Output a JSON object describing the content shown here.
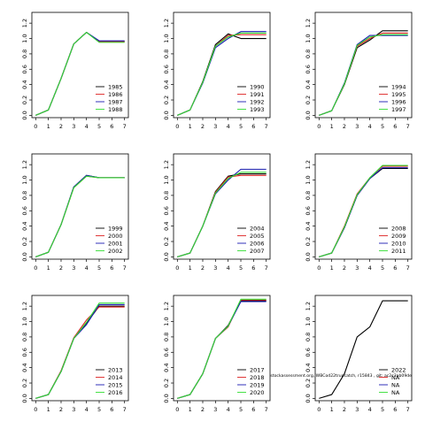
{
  "chart_data": {
    "type": "line",
    "layout": "3x3 small multiples",
    "x": [
      0,
      1,
      2,
      3,
      4,
      5,
      6,
      7
    ],
    "xticks": [
      "0",
      "1",
      "2",
      "3",
      "4",
      "5",
      "6",
      "7"
    ],
    "yticks": [
      "0.0",
      "0.2",
      "0.4",
      "0.6",
      "0.8",
      "1.0",
      "1.2"
    ],
    "ylim": [
      -0.03,
      1.34
    ],
    "xlim": [
      -0.3,
      7.3
    ],
    "grid": false,
    "legend_position": "bottom-right",
    "colors": [
      "#000000",
      "#dd2222",
      "#1a1ab0",
      "#33dd33"
    ],
    "annotation": "stockassessment.org, WBCod22truncatch, r15843 , git: ac2c3ab09de",
    "panels": [
      {
        "series": [
          {
            "name": "1985",
            "values": [
              0,
              0.07,
              0.48,
              0.93,
              1.08,
              0.96,
              0.96,
              0.96
            ]
          },
          {
            "name": "1986",
            "values": [
              0,
              0.07,
              0.48,
              0.93,
              1.08,
              0.96,
              0.96,
              0.96
            ]
          },
          {
            "name": "1987",
            "values": [
              0,
              0.07,
              0.48,
              0.93,
              1.08,
              0.97,
              0.97,
              0.97
            ]
          },
          {
            "name": "1988",
            "values": [
              0,
              0.07,
              0.48,
              0.93,
              1.08,
              0.95,
              0.95,
              0.95
            ]
          }
        ]
      },
      {
        "series": [
          {
            "name": "1990",
            "values": [
              0,
              0.07,
              0.44,
              0.92,
              1.06,
              1.0,
              1.0,
              1.0
            ]
          },
          {
            "name": "1991",
            "values": [
              0,
              0.07,
              0.43,
              0.9,
              1.04,
              1.05,
              1.05,
              1.05
            ]
          },
          {
            "name": "1992",
            "values": [
              0,
              0.07,
              0.42,
              0.88,
              1.0,
              1.09,
              1.09,
              1.09
            ]
          },
          {
            "name": "1993",
            "values": [
              0,
              0.07,
              0.43,
              0.9,
              1.02,
              1.07,
              1.07,
              1.07
            ]
          }
        ]
      },
      {
        "series": [
          {
            "name": "1994",
            "values": [
              0,
              0.06,
              0.4,
              0.88,
              0.98,
              1.1,
              1.1,
              1.1
            ]
          },
          {
            "name": "1995",
            "values": [
              0,
              0.06,
              0.41,
              0.9,
              1.0,
              1.07,
              1.07,
              1.07
            ]
          },
          {
            "name": "1996",
            "values": [
              0,
              0.06,
              0.42,
              0.92,
              1.04,
              1.04,
              1.04,
              1.04
            ]
          },
          {
            "name": "1997",
            "values": [
              0,
              0.06,
              0.41,
              0.91,
              1.02,
              1.05,
              1.05,
              1.05
            ]
          }
        ]
      },
      {
        "series": [
          {
            "name": "1999",
            "values": [
              0,
              0.06,
              0.42,
              0.91,
              1.06,
              1.03,
              1.03,
              1.03
            ]
          },
          {
            "name": "2000",
            "values": [
              0,
              0.06,
              0.42,
              0.9,
              1.05,
              1.03,
              1.03,
              1.03
            ]
          },
          {
            "name": "2001",
            "values": [
              0,
              0.06,
              0.42,
              0.91,
              1.06,
              1.03,
              1.03,
              1.03
            ]
          },
          {
            "name": "2002",
            "values": [
              0,
              0.06,
              0.42,
              0.9,
              1.05,
              1.03,
              1.03,
              1.03
            ]
          }
        ]
      },
      {
        "series": [
          {
            "name": "2004",
            "values": [
              0,
              0.05,
              0.4,
              0.85,
              1.05,
              1.08,
              1.08,
              1.08
            ]
          },
          {
            "name": "2005",
            "values": [
              0,
              0.05,
              0.4,
              0.84,
              1.04,
              1.06,
              1.06,
              1.06
            ]
          },
          {
            "name": "2006",
            "values": [
              0,
              0.05,
              0.4,
              0.82,
              1.0,
              1.14,
              1.14,
              1.14
            ]
          },
          {
            "name": "2007",
            "values": [
              0,
              0.05,
              0.4,
              0.83,
              1.02,
              1.1,
              1.1,
              1.1
            ]
          }
        ]
      },
      {
        "series": [
          {
            "name": "2008",
            "values": [
              0,
              0.05,
              0.38,
              0.8,
              1.02,
              1.15,
              1.15,
              1.15
            ]
          },
          {
            "name": "2009",
            "values": [
              0,
              0.05,
              0.4,
              0.82,
              1.03,
              1.18,
              1.18,
              1.18
            ]
          },
          {
            "name": "2010",
            "values": [
              0,
              0.05,
              0.38,
              0.8,
              1.02,
              1.16,
              1.16,
              1.16
            ]
          },
          {
            "name": "2011",
            "values": [
              0,
              0.05,
              0.39,
              0.81,
              1.03,
              1.19,
              1.19,
              1.19
            ]
          }
        ]
      },
      {
        "series": [
          {
            "name": "2013",
            "values": [
              0,
              0.05,
              0.35,
              0.78,
              0.98,
              1.2,
              1.2,
              1.2
            ]
          },
          {
            "name": "2014",
            "values": [
              0,
              0.05,
              0.36,
              0.79,
              1.02,
              1.19,
              1.19,
              1.19
            ]
          },
          {
            "name": "2015",
            "values": [
              0,
              0.05,
              0.35,
              0.78,
              0.96,
              1.22,
              1.22,
              1.22
            ]
          },
          {
            "name": "2016",
            "values": [
              0,
              0.05,
              0.35,
              0.78,
              0.99,
              1.24,
              1.24,
              1.24
            ]
          }
        ]
      },
      {
        "series": [
          {
            "name": "2017",
            "values": [
              0,
              0.05,
              0.32,
              0.78,
              0.95,
              1.27,
              1.27,
              1.27
            ]
          },
          {
            "name": "2018",
            "values": [
              0,
              0.05,
              0.32,
              0.78,
              0.93,
              1.28,
              1.28,
              1.28
            ]
          },
          {
            "name": "2019",
            "values": [
              0,
              0.05,
              0.32,
              0.78,
              0.94,
              1.26,
              1.26,
              1.26
            ]
          },
          {
            "name": "2020",
            "values": [
              0,
              0.05,
              0.32,
              0.78,
              0.94,
              1.29,
              1.29,
              1.29
            ]
          }
        ]
      },
      {
        "series": [
          {
            "name": "2022",
            "values": [
              0,
              0.05,
              0.32,
              0.8,
              0.93,
              1.27,
              1.27,
              1.27
            ]
          },
          {
            "name": "NA",
            "values": []
          },
          {
            "name": "NA",
            "values": []
          },
          {
            "name": "NA",
            "values": []
          }
        ]
      }
    ]
  }
}
